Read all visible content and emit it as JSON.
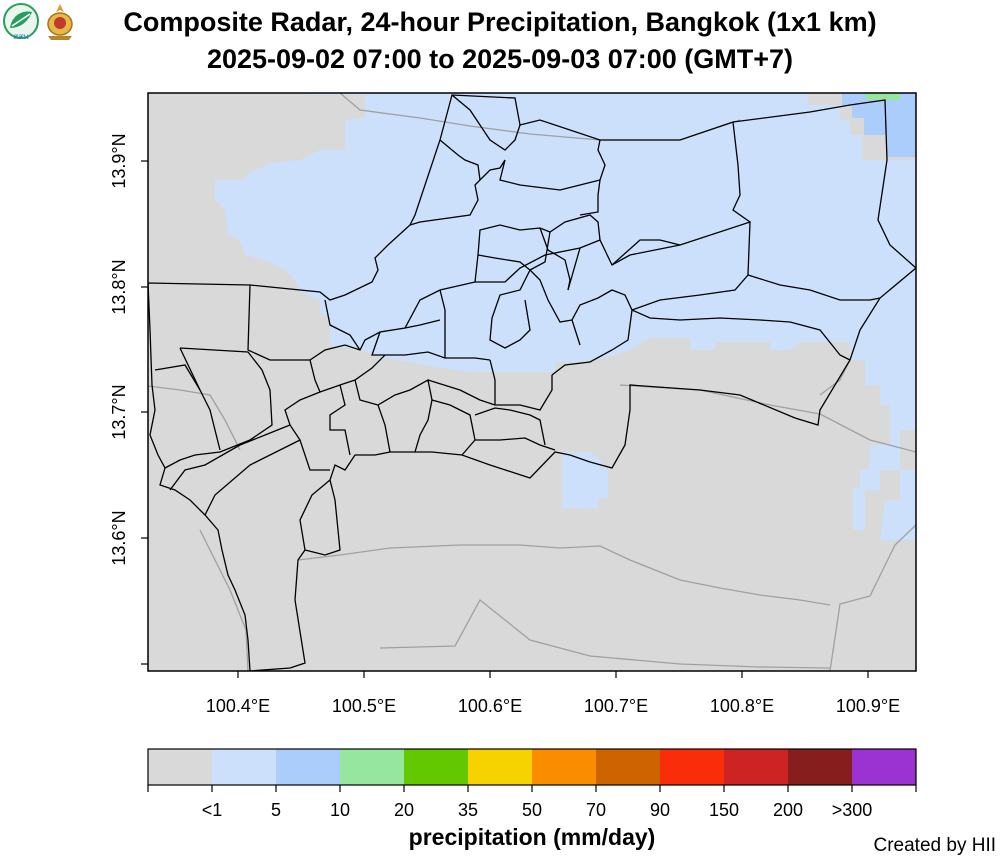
{
  "title": {
    "line1": "Composite Radar, 24-hour Precipitation, Bangkok (1x1 km)",
    "line2": "2025-09-02 07:00 to 2025-09-03 07:00 (GMT+7)"
  },
  "logos": {
    "left": {
      "text": "สสน",
      "icon": "hii-leaf-logo",
      "color": "#2a9d5c"
    },
    "right": {
      "icon": "royal-emblem-logo",
      "color": "#c48a2a"
    }
  },
  "map": {
    "axes": {
      "x_ticks": [
        "100.4°E",
        "100.5°E",
        "100.6°E",
        "100.7°E",
        "100.8°E",
        "100.9°E"
      ],
      "y_ticks": [
        "13.9°N",
        "13.8°N",
        "13.7°N",
        "13.6°N"
      ]
    },
    "colors": {
      "no_rain": "#d9d9d9",
      "light": "#cce0fc",
      "medium": "#aacdfc",
      "green": "#96e6a0",
      "border": "#000000",
      "province_line": "#9a9a9a"
    }
  },
  "legend": {
    "title": "precipitation (mm/day)",
    "bins": [
      {
        "color": "#d9d9d9"
      },
      {
        "color": "#cce0fc"
      },
      {
        "color": "#aacdfc"
      },
      {
        "color": "#96e6a0"
      },
      {
        "color": "#64c800"
      },
      {
        "color": "#f6d200"
      },
      {
        "color": "#fa8c00"
      },
      {
        "color": "#cd6400"
      },
      {
        "color": "#fa2d0a"
      },
      {
        "color": "#cd2323"
      },
      {
        "color": "#871e1e"
      },
      {
        "color": "#9b32d2"
      }
    ],
    "labels": [
      "<1",
      "5",
      "10",
      "20",
      "35",
      "50",
      "70",
      "90",
      "150",
      "200",
      ">300"
    ]
  },
  "credit": "Created by HII"
}
